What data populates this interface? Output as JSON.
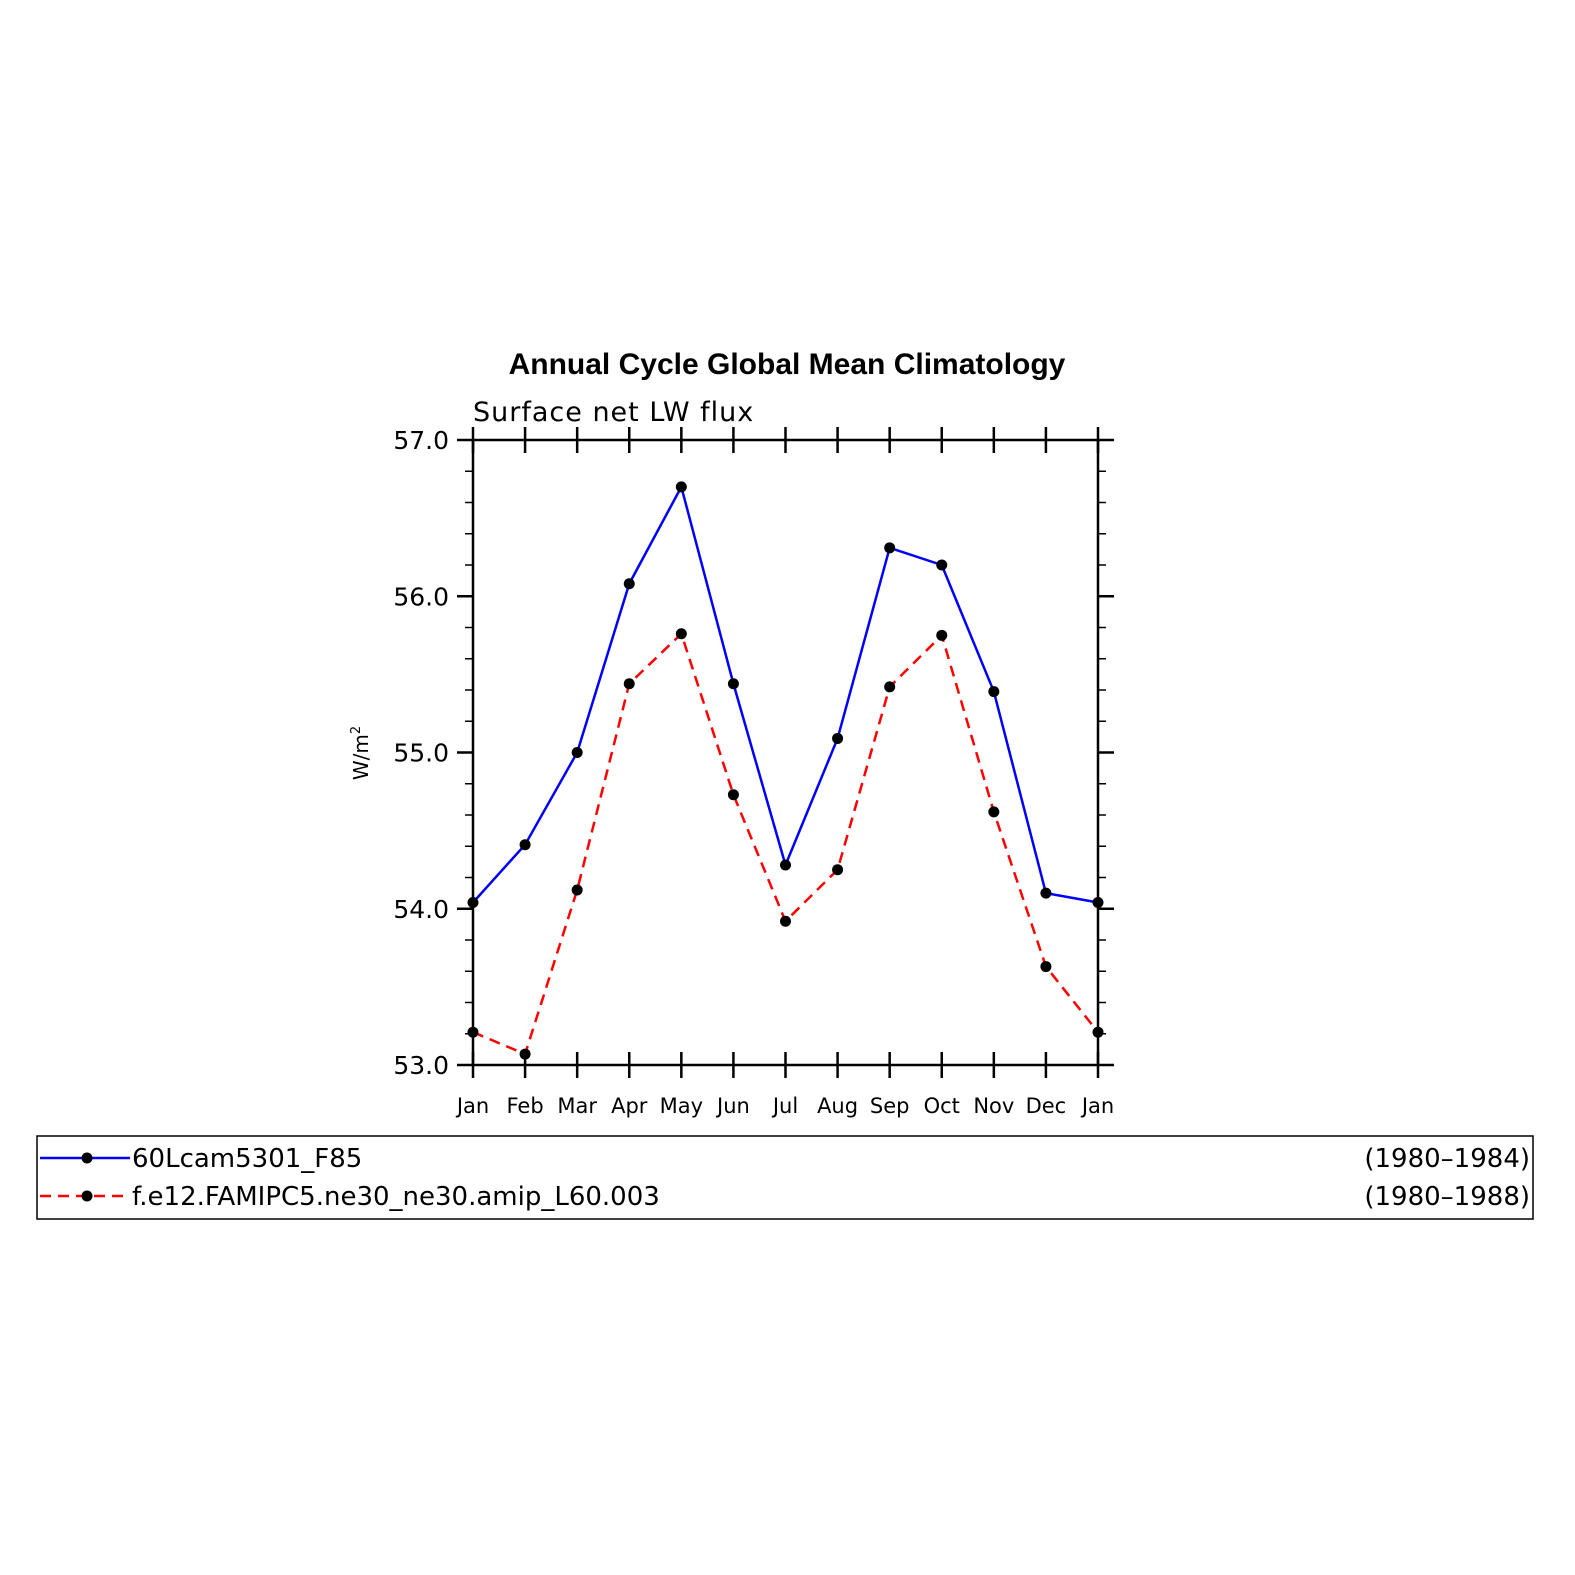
{
  "chart_data": {
    "type": "line",
    "title": "Annual Cycle Global Mean Climatology",
    "subtitle": "Surface net LW flux",
    "ylabel": "W/m",
    "ylabel_superscript": "2",
    "ylim": [
      53.0,
      57.0
    ],
    "yticks": [
      "53.0",
      "54.0",
      "55.0",
      "56.0",
      "57.0"
    ],
    "categories": [
      "Jan",
      "Feb",
      "Mar",
      "Apr",
      "May",
      "Jun",
      "Jul",
      "Aug",
      "Sep",
      "Oct",
      "Nov",
      "Dec",
      "Jan"
    ],
    "grid": false,
    "legend_position": "bottom",
    "series": [
      {
        "name": "60Lcam5301_F85",
        "period": "(1980–1984)",
        "color": "#0000ff",
        "dash": "solid",
        "values": [
          54.04,
          54.41,
          55.0,
          56.08,
          56.7,
          55.44,
          54.28,
          55.09,
          56.31,
          56.2,
          55.39,
          54.1,
          54.04
        ]
      },
      {
        "name": "f.e12.FAMIPC5.ne30_ne30.amip_L60.003",
        "period": "(1980–1988)",
        "color": "#ff0000",
        "dash": "dashed",
        "values": [
          53.21,
          53.07,
          54.12,
          55.44,
          55.76,
          54.73,
          53.92,
          54.25,
          55.42,
          55.75,
          54.62,
          53.63,
          53.21
        ]
      }
    ]
  }
}
